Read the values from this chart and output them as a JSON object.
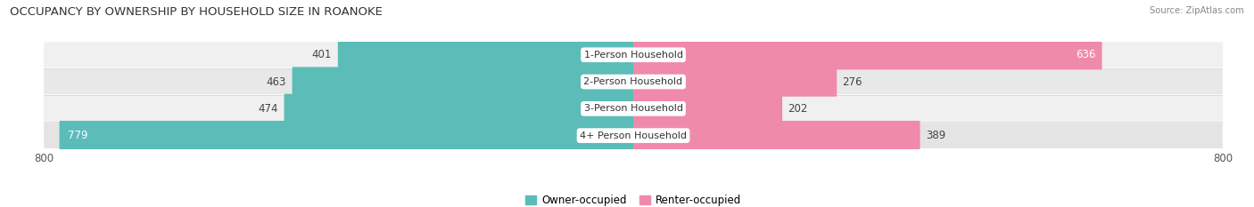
{
  "title": "OCCUPANCY BY OWNERSHIP BY HOUSEHOLD SIZE IN ROANOKE",
  "source": "Source: ZipAtlas.com",
  "categories": [
    "1-Person Household",
    "2-Person Household",
    "3-Person Household",
    "4+ Person Household"
  ],
  "owner_values": [
    401,
    463,
    474,
    779
  ],
  "renter_values": [
    636,
    276,
    202,
    389
  ],
  "owner_color": "#5bbcb8",
  "renter_color": "#f08aaa",
  "row_bg_light": "#f2f2f2",
  "row_bg_dark": "#e6e6e6",
  "axis_max": 800,
  "label_font_size": 8.5,
  "title_font_size": 9.5,
  "background_color": "#ffffff",
  "legend_owner": "Owner-occupied",
  "legend_renter": "Renter-occupied",
  "owner_label_inside_idx": 3,
  "renter_label_inside_idx": 0
}
